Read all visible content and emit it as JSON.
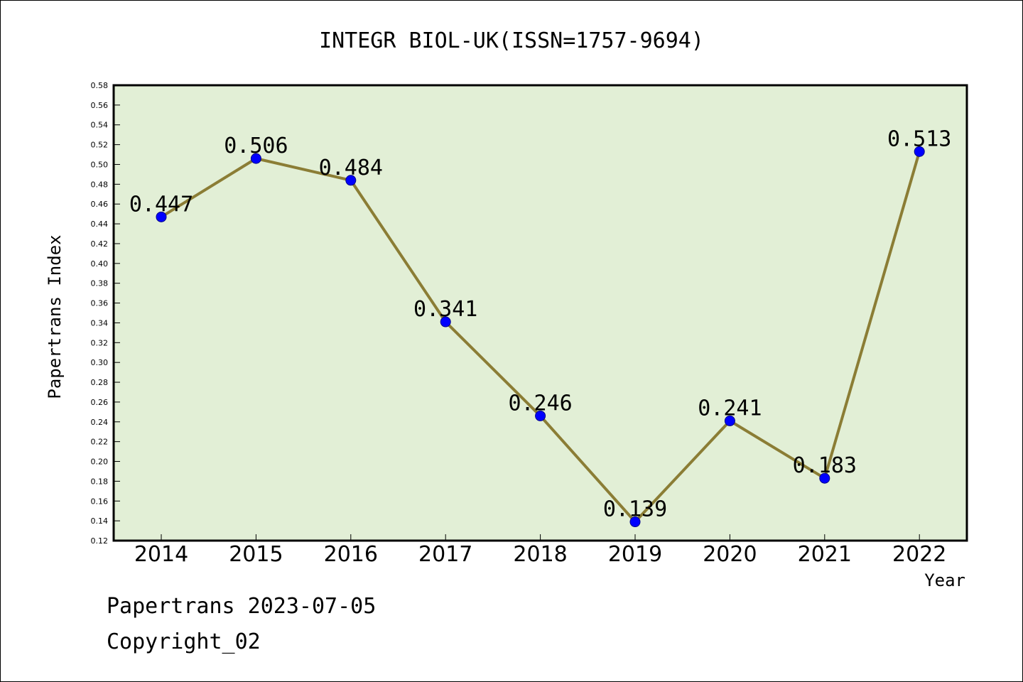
{
  "chart_data": {
    "type": "line",
    "title": "INTEGR BIOL-UK(ISSN=1757-9694)",
    "xlabel": "Year",
    "ylabel": "Papertrans Index",
    "categories": [
      "2014",
      "2015",
      "2016",
      "2017",
      "2018",
      "2019",
      "2020",
      "2021",
      "2022"
    ],
    "values": [
      0.447,
      0.506,
      0.484,
      0.341,
      0.246,
      0.139,
      0.241,
      0.183,
      0.513
    ],
    "data_labels": [
      "0.447",
      "0.506",
      "0.484",
      "0.341",
      "0.246",
      "0.139",
      "0.241",
      "0.183",
      "0.513"
    ],
    "ylim": [
      0.12,
      0.58
    ],
    "yticks": [
      "0.12",
      "0.14",
      "0.16",
      "0.18",
      "0.20",
      "0.22",
      "0.24",
      "0.26",
      "0.28",
      "0.30",
      "0.32",
      "0.34",
      "0.36",
      "0.38",
      "0.40",
      "0.42",
      "0.44",
      "0.46",
      "0.48",
      "0.50",
      "0.52",
      "0.54",
      "0.56",
      "0.58"
    ],
    "grid": false,
    "legend": "none",
    "colors": {
      "plot_background": "#e2efd6",
      "line": "#8b7d35",
      "marker": "#0000ff",
      "marker_edge": "#00008b"
    }
  },
  "footer": {
    "date_line": "Papertrans 2023-07-05",
    "copyright": "Copyright_02"
  }
}
